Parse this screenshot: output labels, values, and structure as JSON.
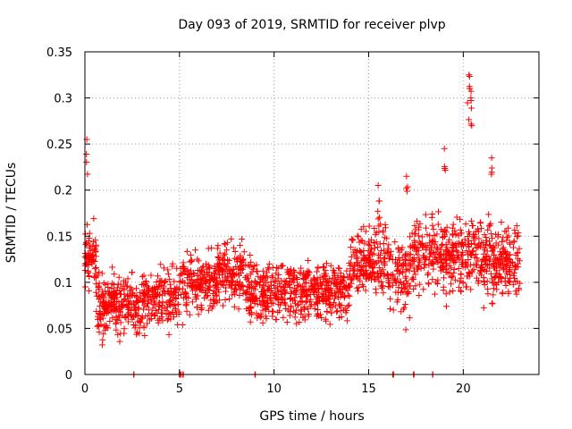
{
  "chart_data": {
    "type": "scatter",
    "title": "Day 093 of 2019, SRMTID for receiver plvp",
    "xlabel": "GPS time / hours",
    "ylabel": "SRMTID / TECUs",
    "xlim": [
      0,
      24
    ],
    "ylim": [
      0,
      0.35
    ],
    "x_ticks": [
      0,
      5,
      10,
      15,
      20
    ],
    "x_tick_labels": [
      "0",
      "5",
      "10",
      "15",
      "20"
    ],
    "y_ticks": [
      0,
      0.05,
      0.1,
      0.15,
      0.2,
      0.25,
      0.3,
      0.35
    ],
    "y_tick_labels": [
      "0",
      "0.05",
      "0.1",
      "0.15",
      "0.2",
      "0.25",
      "0.3",
      "0.35"
    ],
    "grid": true,
    "marker": "plus",
    "color": "#ff0000",
    "series": [
      {
        "name": "SRMTID",
        "x_range": [
          0,
          23
        ],
        "approx_median": 0.1,
        "approx_spread": [
          0.02,
          0.2
        ],
        "notable_peaks": [
          {
            "x": 0.1,
            "y": 0.255
          },
          {
            "x": 20.3,
            "y": 0.325
          },
          {
            "x": 20.35,
            "y": 0.31
          },
          {
            "x": 20.4,
            "y": 0.3
          },
          {
            "x": 19.0,
            "y": 0.245
          },
          {
            "x": 21.5,
            "y": 0.235
          },
          {
            "x": 15.5,
            "y": 0.205
          },
          {
            "x": 17.0,
            "y": 0.215
          }
        ]
      }
    ],
    "zero_values_x": [
      2.6,
      5.0,
      5.1,
      5.2,
      9.0,
      16.3,
      17.4,
      18.4
    ]
  }
}
